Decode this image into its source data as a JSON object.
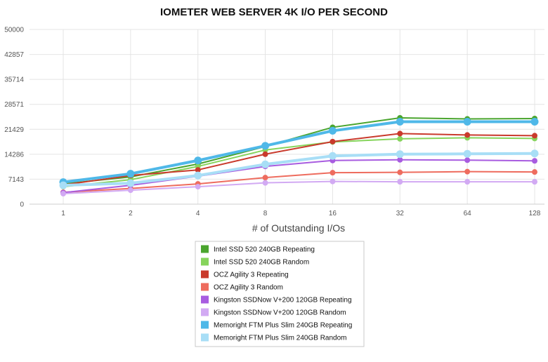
{
  "chart_data": {
    "type": "line",
    "title": "IOMETER WEB SERVER 4K I/O PER SECOND",
    "xlabel": "# of Outstanding I/Os",
    "ylabel": "",
    "x": [
      "1",
      "2",
      "4",
      "8",
      "16",
      "32",
      "64",
      "128"
    ],
    "ylim": [
      0,
      50000
    ],
    "yticks": [
      "0",
      "7143",
      "14286",
      "21429",
      "28571",
      "35714",
      "42857",
      "50000"
    ],
    "grid": true,
    "legend_position": "bottom-center",
    "series": [
      {
        "name": "Intel SSD 520 240GB Repeating",
        "color": "#4aa52e",
        "values": [
          5800,
          7800,
          11500,
          16500,
          22000,
          24700,
          24400,
          24500
        ]
      },
      {
        "name": "Intel SSD 520 240GB Random",
        "color": "#86d45c",
        "values": [
          5000,
          7000,
          10800,
          15500,
          17800,
          18700,
          19000,
          18800
        ]
      },
      {
        "name": "OCZ Agility 3 Repeating",
        "color": "#c93a2c",
        "values": [
          5500,
          8200,
          9800,
          14300,
          17900,
          20200,
          19800,
          19600
        ]
      },
      {
        "name": "OCZ Agility 3 Random",
        "color": "#ee6c5e",
        "values": [
          3400,
          4500,
          5800,
          7600,
          9000,
          9100,
          9300,
          9200
        ]
      },
      {
        "name": "Kingston SSDNow V+200 120GB Repeating",
        "color": "#a85ce0",
        "values": [
          3300,
          5400,
          8000,
          10800,
          12500,
          12700,
          12600,
          12400
        ]
      },
      {
        "name": "Kingston SSDNow V+200 120GB Random",
        "color": "#d2aaf3",
        "values": [
          3000,
          4000,
          5000,
          6100,
          6500,
          6400,
          6400,
          6400
        ]
      },
      {
        "name": "Memoright FTM Plus Slim 240GB Repeating",
        "color": "#4fb8e8",
        "values": [
          6300,
          8700,
          12500,
          16700,
          21000,
          23600,
          23600,
          23600
        ]
      },
      {
        "name": "Memoright FTM Plus Slim 240GB Random",
        "color": "#a8def6",
        "values": [
          5400,
          6000,
          8200,
          11400,
          13800,
          14300,
          14400,
          14500
        ]
      }
    ]
  }
}
